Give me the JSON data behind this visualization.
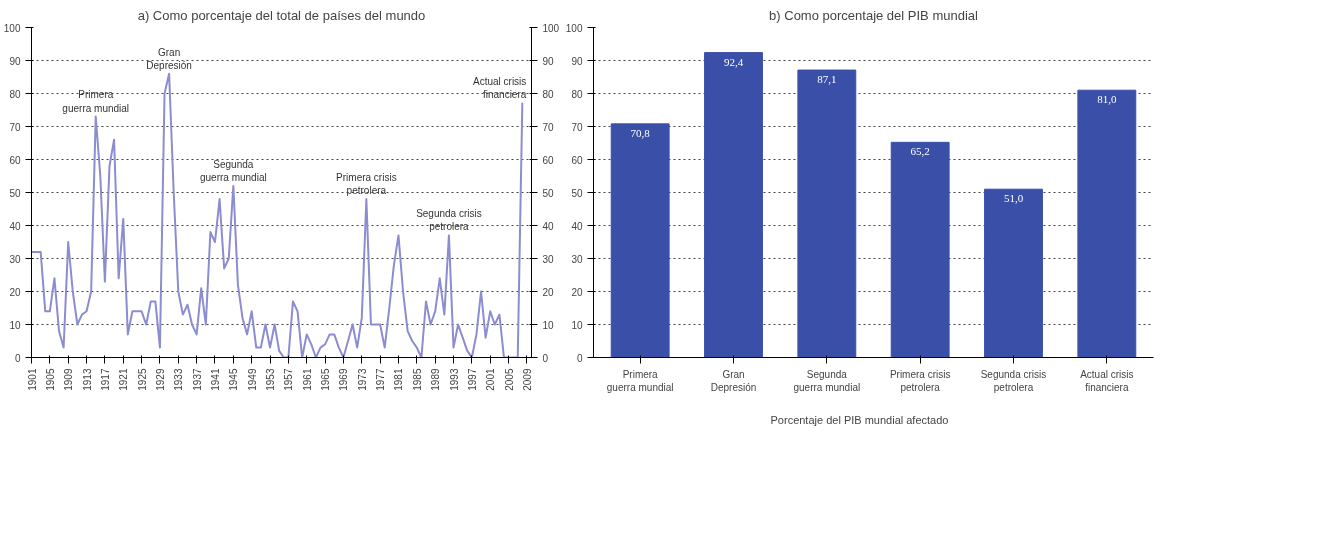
{
  "chart_data": [
    {
      "type": "line",
      "title": "a) Como porcentaje del total de países del mundo",
      "x": [
        1901,
        1903,
        1904,
        1905,
        1906,
        1907,
        1908,
        1909,
        1910,
        1911,
        1912,
        1913,
        1914,
        1915,
        1916,
        1917,
        1918,
        1919,
        1920,
        1921,
        1922,
        1923,
        1924,
        1925,
        1926,
        1927,
        1928,
        1929,
        1930,
        1931,
        1932,
        1933,
        1934,
        1935,
        1936,
        1937,
        1938,
        1939,
        1940,
        1941,
        1942,
        1943,
        1944,
        1945,
        1946,
        1947,
        1948,
        1949,
        1950,
        1951,
        1952,
        1953,
        1954,
        1955,
        1956,
        1957,
        1958,
        1959,
        1960,
        1961,
        1962,
        1963,
        1964,
        1965,
        1966,
        1967,
        1968,
        1969,
        1970,
        1971,
        1972,
        1973,
        1974,
        1975,
        1976,
        1977,
        1978,
        1979,
        1980,
        1981,
        1982,
        1983,
        1984,
        1985,
        1986,
        1987,
        1988,
        1989,
        1990,
        1991,
        1992,
        1993,
        1994,
        1995,
        1996,
        1997,
        1998,
        1999,
        2000,
        2001,
        2002,
        2003,
        2004,
        2005,
        2006,
        2007,
        2008
      ],
      "series": [
        {
          "color": "#8c8cd0",
          "values": [
            32,
            32,
            14,
            14,
            24,
            8,
            3,
            35,
            20,
            10,
            13,
            14,
            20,
            73,
            55,
            23,
            58,
            66,
            24,
            42,
            7,
            14,
            14,
            14,
            10,
            17,
            17,
            3,
            80,
            86,
            50,
            20,
            13,
            16,
            10,
            7,
            21,
            10,
            38,
            35,
            48,
            27,
            30,
            52,
            22,
            12,
            7,
            14,
            3,
            3,
            10,
            3,
            10,
            2,
            0,
            0,
            17,
            14,
            0,
            7,
            4,
            0,
            3,
            4,
            7,
            7,
            3,
            0,
            5,
            10,
            3,
            12,
            48,
            10,
            10,
            10,
            3,
            15,
            28,
            37,
            20,
            8,
            5,
            3,
            0,
            17,
            10,
            14,
            24,
            13,
            37,
            3,
            10,
            6,
            2,
            0,
            7,
            20,
            6,
            14,
            10,
            13,
            0,
            0,
            0,
            0,
            77
          ]
        }
      ],
      "xlim": [
        1901,
        2010
      ],
      "xticks": [
        1901,
        1905,
        1909,
        1913,
        1917,
        1921,
        1925,
        1929,
        1933,
        1937,
        1941,
        1945,
        1949,
        1953,
        1957,
        1961,
        1965,
        1969,
        1973,
        1977,
        1981,
        1985,
        1989,
        1993,
        1997,
        2001,
        2005,
        2009
      ],
      "ylim": [
        0,
        100
      ],
      "yticks": [
        0,
        10,
        20,
        30,
        40,
        50,
        60,
        70,
        80,
        90,
        100
      ],
      "y2lim": [
        0,
        100
      ],
      "y2ticks": [
        0,
        10,
        20,
        30,
        40,
        50,
        60,
        70,
        80,
        90,
        100
      ],
      "grid": "y",
      "line_style": "solid",
      "annotations": [
        {
          "text": "Primera guerra mundial",
          "x": 1915,
          "y": 73
        },
        {
          "text": "Gran Depresión",
          "x": 1931,
          "y": 86
        },
        {
          "text": "Segunda guerra mundial",
          "x": 1945,
          "y": 52
        },
        {
          "text": "Primera crisis petrolera",
          "x": 1974,
          "y": 48
        },
        {
          "text": "Segunda crisis petrolera",
          "x": 1992,
          "y": 37
        },
        {
          "text": "Actual crisis financiera",
          "x": 2008,
          "y": 77
        }
      ]
    },
    {
      "type": "bar",
      "title": "b) Como porcentaje del PIB mundial",
      "categories": [
        "Primera guerra mundial",
        "Gran Depresión",
        "Segunda guerra mundial",
        "Primera crisis petrolera",
        "Segunda crisis petrolera",
        "Actual crisis financiera"
      ],
      "series": [
        {
          "name": "Porcentaje del PIB mundial afectado",
          "color": "#3a4fa8",
          "values": [
            70.8,
            92.4,
            87.1,
            65.2,
            51.0,
            81.0
          ],
          "value_labels": [
            "70,8",
            "92,4",
            "87,1",
            "65,2",
            "51,0",
            "81,0"
          ]
        }
      ],
      "ylim": [
        0,
        100
      ],
      "yticks": [
        0,
        10,
        20,
        30,
        40,
        50,
        60,
        70,
        80,
        90,
        100
      ],
      "grid": "y",
      "legend": "bottom"
    }
  ]
}
